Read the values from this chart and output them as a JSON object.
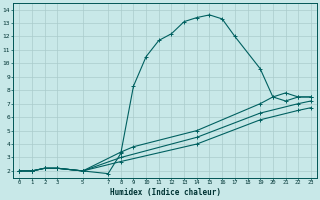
{
  "xlabel": "Humidex (Indice chaleur)",
  "bg_color": "#c8e8e8",
  "grid_color": "#aacccc",
  "line_color": "#006060",
  "xlim": [
    -0.5,
    23.5
  ],
  "ylim": [
    1.5,
    14.5
  ],
  "xticks": [
    0,
    1,
    2,
    3,
    5,
    7,
    8,
    9,
    10,
    11,
    12,
    13,
    14,
    15,
    16,
    17,
    18,
    19,
    20,
    21,
    22,
    23
  ],
  "yticks": [
    2,
    3,
    4,
    5,
    6,
    7,
    8,
    9,
    10,
    11,
    12,
    13,
    14
  ],
  "line1_x": [
    0,
    1,
    2,
    3,
    5,
    7,
    8,
    9,
    10,
    11,
    12,
    13,
    14,
    15,
    16,
    17,
    19,
    20,
    21,
    22,
    23
  ],
  "line1_y": [
    2,
    2,
    2.2,
    2.2,
    2,
    1.8,
    3.3,
    8.3,
    10.5,
    11.7,
    12.2,
    13.1,
    13.4,
    13.6,
    13.3,
    12.0,
    9.6,
    7.5,
    7.2,
    7.5,
    7.5
  ],
  "line2_x": [
    0,
    1,
    2,
    3,
    5,
    8,
    9,
    14,
    19,
    20,
    21,
    22,
    23
  ],
  "line2_y": [
    2,
    2,
    2.2,
    2.2,
    2,
    3.4,
    3.8,
    5.0,
    7.0,
    7.5,
    7.8,
    7.5,
    7.5
  ],
  "line3_x": [
    0,
    1,
    2,
    3,
    5,
    8,
    14,
    19,
    22,
    23
  ],
  "line3_y": [
    2,
    2,
    2.2,
    2.2,
    2,
    3.0,
    4.5,
    6.3,
    7.0,
    7.2
  ],
  "line4_x": [
    0,
    1,
    2,
    3,
    5,
    8,
    14,
    19,
    22,
    23
  ],
  "line4_y": [
    2,
    2,
    2.2,
    2.2,
    2,
    2.7,
    4.0,
    5.8,
    6.5,
    6.7
  ]
}
